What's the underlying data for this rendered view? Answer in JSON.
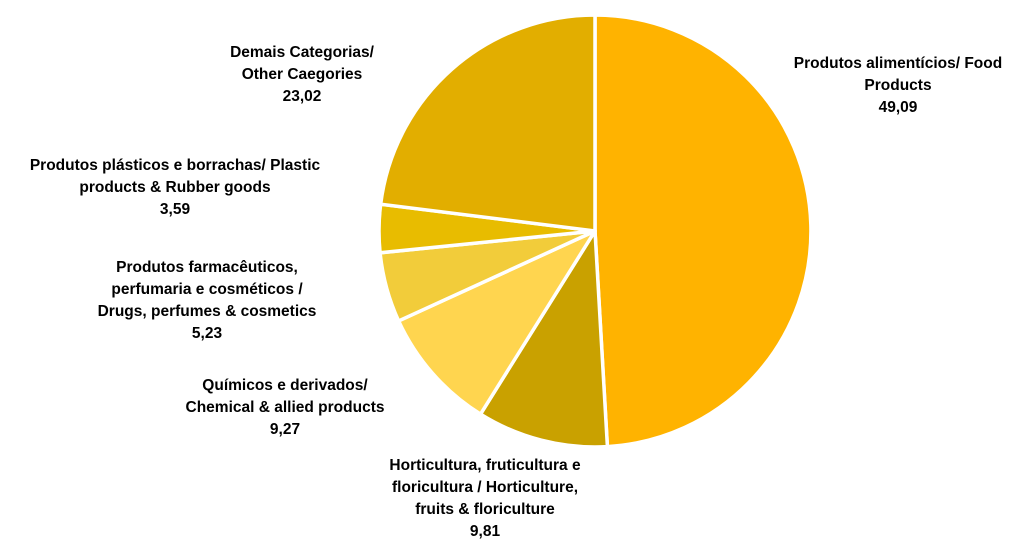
{
  "chart_data": {
    "type": "pie",
    "title": "",
    "slices": [
      {
        "label_lines": [
          "Produtos alimentícios/ Food",
          "Products"
        ],
        "value_label": "49,09",
        "value": 49.09,
        "color": "#FFB300"
      },
      {
        "label_lines": [
          "Horticultura, fruticultura e",
          "floricultura / Horticulture,",
          "fruits & floriculture"
        ],
        "value_label": "9,81",
        "value": 9.81,
        "color": "#C9A100"
      },
      {
        "label_lines": [
          "Químicos e derivados/",
          "Chemical & allied products"
        ],
        "value_label": "9,27",
        "value": 9.27,
        "color": "#FFD54F"
      },
      {
        "label_lines": [
          "Produtos farmacêuticos,",
          "perfumaria e cosméticos /",
          "Drugs, perfumes & cosmetics"
        ],
        "value_label": "5,23",
        "value": 5.23,
        "color": "#F2CC3A"
      },
      {
        "label_lines": [
          "Produtos plásticos e borrachas/ Plastic",
          "products & Rubber goods"
        ],
        "value_label": "3,59",
        "value": 3.59,
        "color": "#E8BC00"
      },
      {
        "label_lines": [
          "Demais Categorias/",
          "Other Caegories"
        ],
        "value_label": "23,02",
        "value": 23.02,
        "color": "#E2AE00"
      }
    ]
  }
}
